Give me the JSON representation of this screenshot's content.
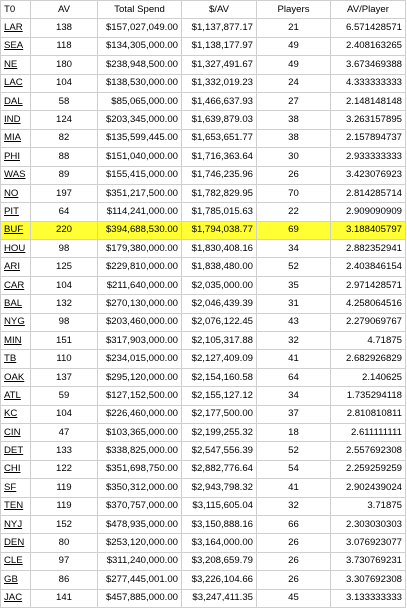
{
  "columns": [
    "T0",
    "AV",
    "Total Spend",
    "$/AV",
    "Players",
    "AV/Player"
  ],
  "highlight_color": "#ffff33",
  "highlighted_team": "BUF",
  "rows": [
    {
      "team": "LAR",
      "av": "138",
      "spend": "$157,027,049.00",
      "per_av": "$1,137,877.17",
      "players": "21",
      "av_per_player": "6.571428571"
    },
    {
      "team": "SEA",
      "av": "118",
      "spend": "$134,305,000.00",
      "per_av": "$1,138,177.97",
      "players": "49",
      "av_per_player": "2.408163265"
    },
    {
      "team": "NE",
      "av": "180",
      "spend": "$238,948,500.00",
      "per_av": "$1,327,491.67",
      "players": "49",
      "av_per_player": "3.673469388"
    },
    {
      "team": "LAC",
      "av": "104",
      "spend": "$138,530,000.00",
      "per_av": "$1,332,019.23",
      "players": "24",
      "av_per_player": "4.333333333"
    },
    {
      "team": "DAL",
      "av": "58",
      "spend": "$85,065,000.00",
      "per_av": "$1,466,637.93",
      "players": "27",
      "av_per_player": "2.148148148"
    },
    {
      "team": "IND",
      "av": "124",
      "spend": "$203,345,000.00",
      "per_av": "$1,639,879.03",
      "players": "38",
      "av_per_player": "3.263157895"
    },
    {
      "team": "MIA",
      "av": "82",
      "spend": "$135,599,445.00",
      "per_av": "$1,653,651.77",
      "players": "38",
      "av_per_player": "2.157894737"
    },
    {
      "team": "PHI",
      "av": "88",
      "spend": "$151,040,000.00",
      "per_av": "$1,716,363.64",
      "players": "30",
      "av_per_player": "2.933333333"
    },
    {
      "team": "WAS",
      "av": "89",
      "spend": "$155,415,000.00",
      "per_av": "$1,746,235.96",
      "players": "26",
      "av_per_player": "3.423076923"
    },
    {
      "team": "NO",
      "av": "197",
      "spend": "$351,217,500.00",
      "per_av": "$1,782,829.95",
      "players": "70",
      "av_per_player": "2.814285714"
    },
    {
      "team": "PIT",
      "av": "64",
      "spend": "$114,241,000.00",
      "per_av": "$1,785,015.63",
      "players": "22",
      "av_per_player": "2.909090909"
    },
    {
      "team": "BUF",
      "av": "220",
      "spend": "$394,688,530.00",
      "per_av": "$1,794,038.77",
      "players": "69",
      "av_per_player": "3.188405797"
    },
    {
      "team": "HOU",
      "av": "98",
      "spend": "$179,380,000.00",
      "per_av": "$1,830,408.16",
      "players": "34",
      "av_per_player": "2.882352941"
    },
    {
      "team": "ARI",
      "av": "125",
      "spend": "$229,810,000.00",
      "per_av": "$1,838,480.00",
      "players": "52",
      "av_per_player": "2.403846154"
    },
    {
      "team": "CAR",
      "av": "104",
      "spend": "$211,640,000.00",
      "per_av": "$2,035,000.00",
      "players": "35",
      "av_per_player": "2.971428571"
    },
    {
      "team": "BAL",
      "av": "132",
      "spend": "$270,130,000.00",
      "per_av": "$2,046,439.39",
      "players": "31",
      "av_per_player": "4.258064516"
    },
    {
      "team": "NYG",
      "av": "98",
      "spend": "$203,460,000.00",
      "per_av": "$2,076,122.45",
      "players": "43",
      "av_per_player": "2.279069767"
    },
    {
      "team": "MIN",
      "av": "151",
      "spend": "$317,903,000.00",
      "per_av": "$2,105,317.88",
      "players": "32",
      "av_per_player": "4.71875"
    },
    {
      "team": "TB",
      "av": "110",
      "spend": "$234,015,000.00",
      "per_av": "$2,127,409.09",
      "players": "41",
      "av_per_player": "2.682926829"
    },
    {
      "team": "OAK",
      "av": "137",
      "spend": "$295,120,000.00",
      "per_av": "$2,154,160.58",
      "players": "64",
      "av_per_player": "2.140625"
    },
    {
      "team": "ATL",
      "av": "59",
      "spend": "$127,152,500.00",
      "per_av": "$2,155,127.12",
      "players": "34",
      "av_per_player": "1.735294118"
    },
    {
      "team": "KC",
      "av": "104",
      "spend": "$226,460,000.00",
      "per_av": "$2,177,500.00",
      "players": "37",
      "av_per_player": "2.810810811"
    },
    {
      "team": "CIN",
      "av": "47",
      "spend": "$103,365,000.00",
      "per_av": "$2,199,255.32",
      "players": "18",
      "av_per_player": "2.611111111"
    },
    {
      "team": "DET",
      "av": "133",
      "spend": "$338,825,000.00",
      "per_av": "$2,547,556.39",
      "players": "52",
      "av_per_player": "2.557692308"
    },
    {
      "team": "CHI",
      "av": "122",
      "spend": "$351,698,750.00",
      "per_av": "$2,882,776.64",
      "players": "54",
      "av_per_player": "2.259259259"
    },
    {
      "team": "SF",
      "av": "119",
      "spend": "$350,312,000.00",
      "per_av": "$2,943,798.32",
      "players": "41",
      "av_per_player": "2.902439024"
    },
    {
      "team": "TEN",
      "av": "119",
      "spend": "$370,757,000.00",
      "per_av": "$3,115,605.04",
      "players": "32",
      "av_per_player": "3.71875"
    },
    {
      "team": "NYJ",
      "av": "152",
      "spend": "$478,935,000.00",
      "per_av": "$3,150,888.16",
      "players": "66",
      "av_per_player": "2.303030303"
    },
    {
      "team": "DEN",
      "av": "80",
      "spend": "$253,120,000.00",
      "per_av": "$3,164,000.00",
      "players": "26",
      "av_per_player": "3.076923077"
    },
    {
      "team": "CLE",
      "av": "97",
      "spend": "$311,240,000.00",
      "per_av": "$3,208,659.79",
      "players": "26",
      "av_per_player": "3.730769231"
    },
    {
      "team": "GB",
      "av": "86",
      "spend": "$277,445,001.00",
      "per_av": "$3,226,104.66",
      "players": "26",
      "av_per_player": "3.307692308"
    },
    {
      "team": "JAC",
      "av": "141",
      "spend": "$457,885,000.00",
      "per_av": "$3,247,411.35",
      "players": "45",
      "av_per_player": "3.133333333"
    }
  ]
}
